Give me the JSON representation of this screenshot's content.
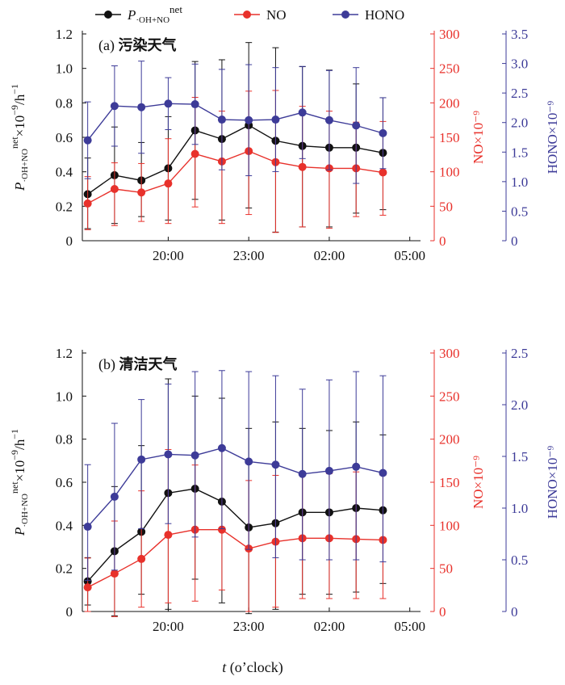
{
  "legend": {
    "items": [
      {
        "main": "P",
        "sub": "·OH+NO",
        "sup": "net",
        "color": "#111111",
        "marker": "circle"
      },
      {
        "main": "NO",
        "sub": "",
        "sup": "",
        "color": "#e8312b",
        "marker": "circle"
      },
      {
        "main": "HONO",
        "sub": "",
        "sup": "",
        "color": "#3d3b98",
        "marker": "circle"
      }
    ]
  },
  "xlabel": {
    "italic": "t",
    "rest": " (o’clock)"
  },
  "colors": {
    "black": "#111111",
    "red": "#e8312b",
    "blue": "#3d3b98"
  },
  "chart_data": [
    {
      "type": "line",
      "panel_label": "(a)",
      "panel_title": "污染天气",
      "x": [
        17,
        18,
        19,
        20,
        21,
        22,
        23,
        24,
        25,
        26,
        27,
        28,
        29
      ],
      "xticks": [
        20,
        23,
        26,
        29
      ],
      "xticklabels": [
        "20:00",
        "23:00",
        "02:00",
        "05:00"
      ],
      "ylabels": {
        "left": {
          "main": "P",
          "sub": "·OH+NO",
          "sup": "net",
          "rest": "×10",
          "rest_sup": "−9",
          "tail": "/h",
          "tail_sup": "−1"
        },
        "right1": "NO×10⁻⁹",
        "right2": "HONO×10⁻⁹"
      },
      "axes": {
        "left": {
          "ylim": [
            0,
            1.2
          ],
          "ticks": [
            0,
            0.2,
            0.4,
            0.6,
            0.8,
            1.0,
            1.2
          ],
          "ticklabels": [
            "0",
            "0.2",
            "0.4",
            "0.6",
            "0.8",
            "1.0",
            "1.2"
          ]
        },
        "right1": {
          "ylim": [
            0,
            300
          ],
          "ticks": [
            0,
            50,
            100,
            150,
            200,
            250,
            300
          ],
          "ticklabels": [
            "0",
            "50",
            "100",
            "150",
            "200",
            "250",
            "300"
          ]
        },
        "right2": {
          "ylim": [
            0,
            3.5
          ],
          "ticks": [
            0,
            0.5,
            1.0,
            1.5,
            2.0,
            2.5,
            3.0,
            3.5
          ],
          "ticklabels": [
            "0",
            "0.5",
            "1.0",
            "1.5",
            "2.0",
            "2.5",
            "3.0",
            "3.5"
          ]
        }
      },
      "series": [
        {
          "name": "P·OH+NO net",
          "axis": "left",
          "color": "#111111",
          "values": [
            0.27,
            0.38,
            0.35,
            0.42,
            0.64,
            0.59,
            0.67,
            0.58,
            0.55,
            0.54,
            0.54,
            0.51
          ],
          "x": [
            17,
            18,
            19,
            20,
            21,
            22,
            23,
            24,
            25,
            26,
            27,
            28
          ],
          "err_upper": [
            0.48,
            0.66,
            0.57,
            0.72,
            1.04,
            1.05,
            1.15,
            1.12,
            1.01,
            0.99,
            0.91,
            0.83
          ],
          "err_lower": [
            0.07,
            0.1,
            0.14,
            0.12,
            0.24,
            0.12,
            0.19,
            0.05,
            0.08,
            0.08,
            0.16,
            0.18
          ]
        },
        {
          "name": "NO",
          "axis": "right1",
          "color": "#e8312b",
          "values": [
            54,
            75,
            70,
            83,
            126,
            115,
            130,
            114,
            107,
            105,
            105,
            99
          ],
          "x": [
            17,
            18,
            19,
            20,
            21,
            22,
            23,
            24,
            25,
            26,
            27,
            28
          ],
          "err_upper": [
            93,
            113,
            112,
            148,
            208,
            188,
            217,
            218,
            195,
            188,
            172,
            173
          ],
          "err_lower": [
            16,
            22,
            28,
            25,
            49,
            25,
            38,
            12,
            20,
            18,
            35,
            37
          ]
        },
        {
          "name": "HONO",
          "axis": "right2",
          "color": "#3d3b98",
          "values": [
            1.7,
            2.28,
            2.26,
            2.32,
            2.31,
            2.05,
            2.04,
            2.05,
            2.17,
            2.04,
            1.95,
            1.82
          ],
          "x": [
            17,
            18,
            19,
            20,
            21,
            22,
            23,
            24,
            25,
            26,
            27,
            28
          ],
          "err_upper": [
            2.35,
            2.96,
            3.04,
            2.76,
            2.99,
            2.9,
            2.98,
            2.93,
            2.95,
            2.88,
            2.93,
            2.42
          ],
          "err_lower": [
            1.05,
            1.6,
            1.48,
            1.88,
            1.63,
            1.2,
            1.1,
            1.17,
            1.39,
            1.2,
            0.97,
            1.22
          ]
        }
      ]
    },
    {
      "type": "line",
      "panel_label": "(b)",
      "panel_title": "清洁天气",
      "x": [
        17,
        18,
        19,
        20,
        21,
        22,
        23,
        24,
        25,
        26,
        27,
        28,
        29
      ],
      "xticks": [
        20,
        23,
        26,
        29
      ],
      "xticklabels": [
        "20:00",
        "23:00",
        "02:00",
        "05:00"
      ],
      "ylabels": {
        "left": {
          "main": "P",
          "sub": "·OH+NO",
          "sup": "net",
          "rest": "×10",
          "rest_sup": "−9",
          "tail": "/h",
          "tail_sup": "−1"
        },
        "right1": "NO×10⁻⁹",
        "right2": "HONO×10⁻⁹"
      },
      "axes": {
        "left": {
          "ylim": [
            0,
            1.2
          ],
          "ticks": [
            0,
            0.2,
            0.4,
            0.6,
            0.8,
            1.0,
            1.2
          ],
          "ticklabels": [
            "0",
            "0.2",
            "0.4",
            "0.6",
            "0.8",
            "1.0",
            "1.2"
          ]
        },
        "right1": {
          "ylim": [
            0,
            300
          ],
          "ticks": [
            0,
            50,
            100,
            150,
            200,
            250,
            300
          ],
          "ticklabels": [
            "0",
            "50",
            "100",
            "150",
            "200",
            "250",
            "300"
          ]
        },
        "right2": {
          "ylim": [
            0,
            2.5
          ],
          "ticks": [
            0,
            0.5,
            1.0,
            1.5,
            2.0,
            2.5
          ],
          "ticklabels": [
            "0",
            "0.5",
            "1.0",
            "1.5",
            "2.0",
            "2.5"
          ]
        }
      },
      "series": [
        {
          "name": "P·OH+NO net",
          "axis": "left",
          "color": "#111111",
          "values": [
            0.14,
            0.28,
            0.37,
            0.55,
            0.57,
            0.51,
            0.39,
            0.41,
            0.46,
            0.46,
            0.48,
            0.47
          ],
          "x": [
            17,
            18,
            19,
            20,
            21,
            22,
            23,
            24,
            25,
            26,
            27,
            28
          ],
          "err_upper": [
            0.25,
            0.58,
            0.77,
            1.08,
            1.0,
            0.99,
            0.85,
            0.88,
            0.85,
            0.84,
            0.88,
            0.82
          ],
          "err_lower": [
            0.03,
            -0.02,
            0.08,
            0.01,
            0.15,
            0.04,
            -0.01,
            0.01,
            0.08,
            0.08,
            0.09,
            0.13
          ]
        },
        {
          "name": "NO",
          "axis": "right1",
          "color": "#e8312b",
          "values": [
            28,
            44,
            61,
            89,
            95,
            95,
            73,
            81,
            85,
            85,
            84,
            83
          ],
          "x": [
            17,
            18,
            19,
            20,
            21,
            22,
            23,
            24,
            25,
            26,
            27,
            28
          ],
          "err_upper": [
            62,
            105,
            140,
            188,
            170,
            190,
            152,
            158,
            160,
            160,
            162,
            158
          ],
          "err_lower": [
            0,
            -6,
            5,
            10,
            12,
            25,
            0,
            5,
            15,
            15,
            15,
            15
          ]
        },
        {
          "name": "HONO",
          "axis": "right2",
          "color": "#3d3b98",
          "values": [
            0.82,
            1.11,
            1.47,
            1.52,
            1.51,
            1.58,
            1.45,
            1.42,
            1.33,
            1.36,
            1.4,
            1.34
          ],
          "x": [
            17,
            18,
            19,
            20,
            21,
            22,
            23,
            24,
            25,
            26,
            27,
            28
          ],
          "err_upper": [
            1.42,
            1.82,
            2.05,
            2.2,
            2.32,
            2.33,
            2.32,
            2.28,
            2.15,
            2.24,
            2.32,
            2.28
          ],
          "err_lower": [
            0.3,
            0.4,
            0.8,
            0.85,
            0.72,
            0.8,
            0.6,
            0.52,
            0.5,
            0.5,
            0.5,
            0.48
          ]
        }
      ]
    }
  ]
}
